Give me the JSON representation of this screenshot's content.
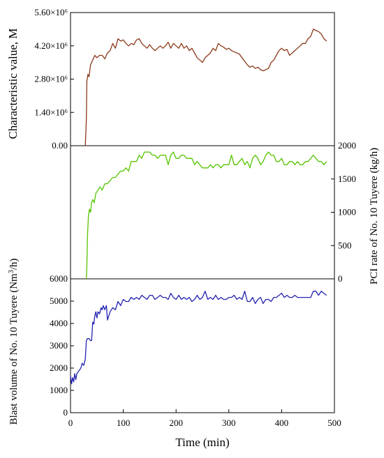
{
  "chart_data": [
    {
      "type": "line",
      "panel": "top",
      "ylabel": "Characteristic value, M",
      "ylim": [
        0,
        5600000
      ],
      "yticks": [
        "0.00",
        "1.40×10⁶",
        "2.80×10⁶",
        "4.20×10⁶",
        "5.60×10⁶"
      ],
      "yaxis_side": "left",
      "color": "#8b3a1a",
      "series": [
        {
          "x": [
            28,
            30,
            31,
            33,
            35,
            38,
            42,
            46,
            50,
            55,
            60,
            65,
            70,
            75,
            80,
            85,
            90,
            95,
            100,
            105,
            110,
            115,
            120,
            125,
            130,
            135,
            140,
            145,
            150,
            155,
            160,
            165,
            170,
            175,
            180,
            185,
            190,
            195,
            200,
            205,
            210,
            215,
            220,
            225,
            230,
            235,
            240,
            245,
            250,
            255,
            260,
            265,
            270,
            275,
            280,
            285,
            290,
            295,
            300,
            305,
            310,
            315,
            320,
            325,
            330,
            335,
            340,
            345,
            350,
            355,
            360,
            365,
            370,
            375,
            380,
            385,
            390,
            395,
            400,
            405,
            410,
            415,
            420,
            425,
            430,
            435,
            440,
            445,
            450,
            455,
            460,
            465,
            470,
            475,
            480,
            485
          ],
          "y": [
            0,
            1100000,
            2700000,
            3000000,
            2900000,
            3400000,
            3600000,
            3800000,
            3700000,
            3800000,
            3800000,
            3650000,
            3900000,
            4000000,
            4300000,
            4100000,
            4500000,
            4400000,
            4450000,
            4300000,
            4200000,
            4300000,
            4250000,
            4450000,
            4500000,
            4300000,
            4200000,
            4100000,
            4250000,
            4100000,
            4000000,
            4100000,
            4200000,
            4100000,
            4200000,
            4350000,
            4100000,
            4300000,
            4200000,
            4100000,
            4300000,
            4100000,
            4200000,
            4000000,
            4100000,
            3900000,
            3700000,
            3600000,
            3500000,
            3700000,
            3800000,
            3900000,
            4100000,
            4000000,
            4300000,
            4200000,
            4150000,
            4050000,
            4100000,
            4000000,
            3950000,
            3900000,
            3850000,
            3700000,
            3550000,
            3400000,
            3300000,
            3350000,
            3250000,
            3300000,
            3200000,
            3150000,
            3200000,
            3250000,
            3500000,
            3600000,
            3800000,
            4000000,
            4100000,
            4000000,
            4050000,
            3800000,
            3900000,
            4000000,
            4100000,
            4200000,
            4300000,
            4300000,
            4500000,
            4600000,
            4900000,
            4850000,
            4800000,
            4700000,
            4500000,
            4400000
          ]
        }
      ]
    },
    {
      "type": "line",
      "panel": "middle",
      "ylabel": "PCI rate of No. 10 Tuyere (kg/h)",
      "ylim": [
        0,
        2100
      ],
      "yticks": [
        "0",
        "500",
        "1000",
        "1500",
        "2000"
      ],
      "yaxis_side": "right",
      "color": "#55c400",
      "series": [
        {
          "x": [
            30,
            31,
            32,
            34,
            36,
            38,
            40,
            42,
            45,
            48,
            52,
            56,
            60,
            65,
            70,
            75,
            80,
            85,
            90,
            95,
            100,
            105,
            110,
            115,
            120,
            125,
            130,
            135,
            140,
            145,
            150,
            155,
            160,
            165,
            170,
            175,
            180,
            185,
            190,
            195,
            200,
            205,
            210,
            215,
            220,
            225,
            230,
            235,
            240,
            245,
            250,
            255,
            260,
            265,
            270,
            275,
            280,
            285,
            290,
            295,
            300,
            305,
            310,
            315,
            320,
            325,
            330,
            335,
            340,
            345,
            350,
            355,
            360,
            365,
            370,
            375,
            380,
            385,
            390,
            395,
            400,
            405,
            410,
            415,
            420,
            425,
            430,
            435,
            440,
            445,
            450,
            455,
            460,
            465,
            470,
            475,
            480,
            485
          ],
          "y": [
            0,
            200,
            650,
            1000,
            1100,
            1050,
            1200,
            1250,
            1200,
            1350,
            1400,
            1450,
            1400,
            1500,
            1500,
            1550,
            1600,
            1600,
            1650,
            1700,
            1700,
            1750,
            1700,
            1850,
            1850,
            1850,
            1950,
            1900,
            2000,
            2000,
            2000,
            1950,
            1950,
            1900,
            1950,
            1950,
            1950,
            1800,
            1950,
            2000,
            1900,
            1900,
            1950,
            1950,
            1900,
            1900,
            1900,
            1800,
            1850,
            1800,
            1750,
            1750,
            1750,
            1800,
            1750,
            1800,
            1800,
            1750,
            1800,
            1800,
            1800,
            1950,
            1800,
            1800,
            1850,
            1900,
            1800,
            1850,
            1750,
            1900,
            1950,
            1900,
            1800,
            1850,
            1950,
            2000,
            1950,
            1950,
            1850,
            1850,
            1900,
            1800,
            1800,
            1850,
            1850,
            1800,
            1850,
            1800,
            1800,
            1850,
            1850,
            1900,
            1950,
            1900,
            1850,
            1850,
            1800,
            1850
          ]
        }
      ]
    },
    {
      "type": "line",
      "panel": "bottom",
      "ylabel": "Blast volume of No. 10 Tuyere (Nm³/h)",
      "ylim": [
        0,
        6500
      ],
      "yticks": [
        "0",
        "1000",
        "2000",
        "3000",
        "4000",
        "5000",
        "6000"
      ],
      "yaxis_side": "left",
      "xlabel": "Time (min)",
      "xlim": [
        0,
        500
      ],
      "xticks": [
        "0",
        "100",
        "200",
        "300",
        "400",
        "500"
      ],
      "color": "#2222b0",
      "series": [
        {
          "x": [
            0,
            2,
            4,
            6,
            8,
            10,
            12,
            15,
            18,
            20,
            22,
            25,
            28,
            30,
            32,
            35,
            38,
            40,
            42,
            44,
            46,
            48,
            50,
            52,
            55,
            58,
            60,
            62,
            65,
            68,
            70,
            75,
            80,
            85,
            90,
            95,
            100,
            105,
            110,
            115,
            120,
            125,
            130,
            135,
            140,
            145,
            150,
            155,
            160,
            165,
            170,
            175,
            180,
            185,
            190,
            195,
            200,
            205,
            210,
            215,
            220,
            225,
            230,
            235,
            240,
            245,
            250,
            255,
            260,
            265,
            270,
            275,
            280,
            285,
            290,
            295,
            300,
            305,
            310,
            315,
            320,
            325,
            330,
            335,
            340,
            345,
            350,
            355,
            360,
            365,
            370,
            375,
            380,
            385,
            390,
            395,
            400,
            405,
            410,
            415,
            420,
            425,
            430,
            435,
            440,
            445,
            450,
            455,
            460,
            465,
            470,
            475,
            480,
            485
          ],
          "y": [
            1800,
            1400,
            1700,
            1500,
            1900,
            1600,
            1900,
            2000,
            2100,
            2200,
            2400,
            2300,
            2600,
            3500,
            3600,
            3600,
            3500,
            3500,
            4400,
            4300,
            4700,
            4900,
            4600,
            4900,
            4800,
            5100,
            5000,
            5200,
            5000,
            5200,
            4500,
            4900,
            5100,
            5000,
            5400,
            5200,
            5500,
            5400,
            5400,
            5600,
            5500,
            5600,
            5500,
            5700,
            5600,
            5500,
            5700,
            5700,
            5500,
            5600,
            5700,
            5600,
            5600,
            5500,
            5800,
            5600,
            5500,
            5700,
            5500,
            5600,
            5500,
            5600,
            5400,
            5500,
            5700,
            5500,
            5600,
            5900,
            5500,
            5600,
            5500,
            5700,
            5500,
            5600,
            5500,
            5500,
            5600,
            5600,
            5700,
            5500,
            5600,
            5500,
            5900,
            5400,
            5400,
            5600,
            5300,
            5500,
            5600,
            5300,
            5500,
            5500,
            5400,
            5600,
            5600,
            5700,
            5800,
            5600,
            5700,
            5600,
            5600,
            5700,
            5600,
            5600,
            5600,
            5600,
            5600,
            5600,
            5900,
            5900,
            5700,
            5900,
            5800,
            5700
          ]
        }
      ]
    }
  ]
}
